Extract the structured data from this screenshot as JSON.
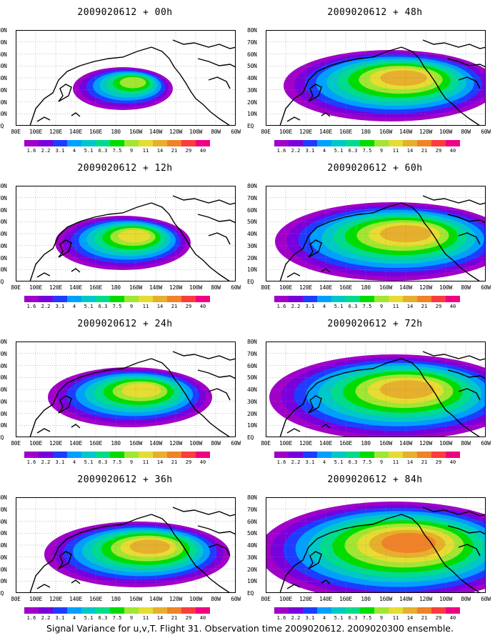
{
  "panels": [
    {
      "title": "2009020612 + 00h",
      "stage": 0
    },
    {
      "title": "2009020612 + 48h",
      "stage": 4
    },
    {
      "title": "2009020612 + 12h",
      "stage": 1
    },
    {
      "title": "2009020612 + 60h",
      "stage": 5
    },
    {
      "title": "2009020612 + 24h",
      "stage": 2
    },
    {
      "title": "2009020612 + 72h",
      "stage": 6
    },
    {
      "title": "2009020612 + 36h",
      "stage": 3
    },
    {
      "title": "2009020612 + 84h",
      "stage": 7
    }
  ],
  "lat_labels": [
    "80N",
    "70N",
    "60N",
    "50N",
    "40N",
    "30N",
    "20N",
    "10N",
    "EQ"
  ],
  "lon_labels": [
    "80E",
    "100E",
    "120E",
    "140E",
    "160E",
    "180",
    "160W",
    "140W",
    "120W",
    "100W",
    "80W",
    "60W"
  ],
  "colorbar": {
    "colors": [
      "#a000c8",
      "#7800dc",
      "#1e3cff",
      "#00a0ff",
      "#00c8c8",
      "#00dc8c",
      "#00dc00",
      "#a0e632",
      "#e6dc32",
      "#e6af2d",
      "#f08228",
      "#fa3c3c",
      "#f00082"
    ],
    "labels": [
      "1.6",
      "2.2",
      "3.1",
      "4",
      "5.1",
      "6.3",
      "7.5",
      "9",
      "11",
      "14",
      "21",
      "29",
      "40"
    ]
  },
  "caption": "Signal Variance for u,v,T. Flight 31. Observation time 2009020612. 2009020300 ensemble."
}
